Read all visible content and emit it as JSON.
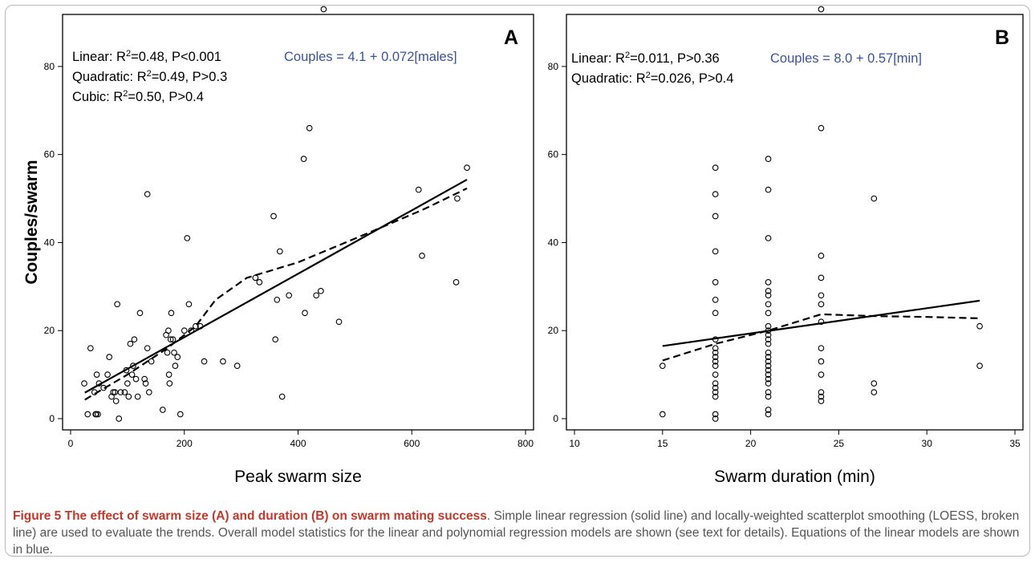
{
  "y_axis_label": "Couples/swarm",
  "caption": {
    "title": "Figure 5 The effect of swarm size (A) and duration (B) on swarm mating success",
    "text": ". Simple linear regression (solid line) and locally-weighted scatterplot smoothing (LOESS, broken line) are used to evaluate the trends. Overall model statistics for the linear and polynomial regression models are shown (see text for details). Equations of the linear models are shown in blue."
  },
  "colors": {
    "equation": "#3a52a0",
    "axis": "#000000",
    "caption_title": "#c0392b",
    "caption_text": "#555555"
  },
  "chart_data": [
    {
      "panel": "A",
      "type": "scatter",
      "xlabel": "Peak swarm size",
      "ylabel": "Couples/swarm",
      "xlim": [
        0,
        800
      ],
      "ylim": [
        0,
        90
      ],
      "x_ticks": [
        0,
        200,
        400,
        600,
        800
      ],
      "y_ticks": [
        0,
        20,
        40,
        60,
        80
      ],
      "stats": [
        {
          "model": "Linear:",
          "r2": "0.48",
          "p": "P<0.001"
        },
        {
          "model": "Quadratic:",
          "r2": "0.49",
          "p": "P>0.3"
        },
        {
          "model": "Cubic:",
          "r2": "0.50",
          "p": "P>0.4"
        }
      ],
      "equation": "Couples = 4.1 + 0.072[males]",
      "points": [
        [
          24,
          8
        ],
        [
          30,
          1
        ],
        [
          35,
          16
        ],
        [
          42,
          6
        ],
        [
          44,
          1
        ],
        [
          45,
          1
        ],
        [
          46,
          10
        ],
        [
          48,
          1
        ],
        [
          50,
          8
        ],
        [
          58,
          7
        ],
        [
          65,
          10
        ],
        [
          68,
          14
        ],
        [
          72,
          5
        ],
        [
          75,
          6
        ],
        [
          78,
          6
        ],
        [
          80,
          4
        ],
        [
          82,
          26
        ],
        [
          85,
          0
        ],
        [
          88,
          6
        ],
        [
          95,
          6
        ],
        [
          98,
          11
        ],
        [
          100,
          8
        ],
        [
          102,
          5
        ],
        [
          105,
          17
        ],
        [
          108,
          10
        ],
        [
          110,
          12
        ],
        [
          112,
          18
        ],
        [
          115,
          9
        ],
        [
          118,
          5
        ],
        [
          122,
          24
        ],
        [
          130,
          9
        ],
        [
          132,
          8
        ],
        [
          135,
          16
        ],
        [
          135,
          51
        ],
        [
          138,
          6
        ],
        [
          142,
          13
        ],
        [
          162,
          2
        ],
        [
          168,
          19
        ],
        [
          170,
          15
        ],
        [
          172,
          20
        ],
        [
          173,
          10
        ],
        [
          174,
          8
        ],
        [
          176,
          18
        ],
        [
          177,
          24
        ],
        [
          180,
          18
        ],
        [
          182,
          15
        ],
        [
          184,
          12
        ],
        [
          188,
          14
        ],
        [
          193,
          1
        ],
        [
          200,
          20
        ],
        [
          205,
          41
        ],
        [
          208,
          26
        ],
        [
          212,
          20
        ],
        [
          220,
          21
        ],
        [
          228,
          21
        ],
        [
          235,
          13
        ],
        [
          268,
          13
        ],
        [
          293,
          12
        ],
        [
          325,
          32
        ],
        [
          332,
          31
        ],
        [
          357,
          46
        ],
        [
          360,
          18
        ],
        [
          363,
          27
        ],
        [
          368,
          38
        ],
        [
          372,
          5
        ],
        [
          384,
          28
        ],
        [
          410,
          59
        ],
        [
          412,
          24
        ],
        [
          420,
          66
        ],
        [
          432,
          28
        ],
        [
          440,
          29
        ],
        [
          445,
          93
        ],
        [
          472,
          22
        ],
        [
          612,
          52
        ],
        [
          618,
          37
        ],
        [
          678,
          31
        ],
        [
          680,
          50
        ],
        [
          697,
          57
        ]
      ],
      "linear": [
        [
          25,
          5.9
        ],
        [
          697,
          54.3
        ]
      ],
      "loess": [
        [
          25,
          4.3
        ],
        [
          100,
          10
        ],
        [
          170,
          16
        ],
        [
          220,
          21
        ],
        [
          255,
          27
        ],
        [
          310,
          32
        ],
        [
          400,
          35.5
        ],
        [
          520,
          42
        ],
        [
          620,
          47.5
        ],
        [
          697,
          52.3
        ]
      ]
    },
    {
      "panel": "B",
      "type": "scatter",
      "xlabel": "Swarm duration (min)",
      "ylabel": "",
      "xlim": [
        10,
        35
      ],
      "ylim": [
        0,
        90
      ],
      "x_ticks": [
        10,
        15,
        20,
        25,
        30,
        35
      ],
      "y_ticks": [
        0,
        20,
        40,
        60,
        80
      ],
      "stats": [
        {
          "model": "Linear:",
          "r2": "0.011",
          "p": "P>0.36"
        },
        {
          "model": "Quadratic:",
          "r2": "0.026",
          "p": "P>0.4"
        }
      ],
      "equation": "Couples = 8.0 + 0.57[min]",
      "points": [
        [
          15,
          12
        ],
        [
          15,
          1
        ],
        [
          18,
          57
        ],
        [
          18,
          51
        ],
        [
          18,
          46
        ],
        [
          18,
          38
        ],
        [
          18,
          31
        ],
        [
          18,
          27
        ],
        [
          18,
          24
        ],
        [
          18,
          18
        ],
        [
          18,
          16
        ],
        [
          18,
          15
        ],
        [
          18,
          14
        ],
        [
          18,
          13
        ],
        [
          18,
          12
        ],
        [
          18,
          10
        ],
        [
          18,
          8
        ],
        [
          18,
          7
        ],
        [
          18,
          6
        ],
        [
          18,
          5
        ],
        [
          18,
          1
        ],
        [
          18,
          0
        ],
        [
          21,
          59
        ],
        [
          21,
          52
        ],
        [
          21,
          41
        ],
        [
          21,
          31
        ],
        [
          21,
          29
        ],
        [
          21,
          28
        ],
        [
          21,
          26
        ],
        [
          21,
          24
        ],
        [
          21,
          21
        ],
        [
          21,
          20
        ],
        [
          21,
          19
        ],
        [
          21,
          18
        ],
        [
          21,
          17
        ],
        [
          21,
          15
        ],
        [
          21,
          14
        ],
        [
          21,
          13
        ],
        [
          21,
          12
        ],
        [
          21,
          11
        ],
        [
          21,
          10
        ],
        [
          21,
          9
        ],
        [
          21,
          8
        ],
        [
          21,
          6
        ],
        [
          21,
          5
        ],
        [
          21,
          2
        ],
        [
          21,
          1
        ],
        [
          24,
          93
        ],
        [
          24,
          66
        ],
        [
          24,
          37
        ],
        [
          24,
          32
        ],
        [
          24,
          28
        ],
        [
          24,
          26
        ],
        [
          24,
          22
        ],
        [
          24,
          16
        ],
        [
          24,
          13
        ],
        [
          24,
          10
        ],
        [
          24,
          6
        ],
        [
          24,
          5
        ],
        [
          24,
          4
        ],
        [
          27,
          50
        ],
        [
          27,
          8
        ],
        [
          27,
          6
        ],
        [
          33,
          21
        ],
        [
          33,
          12
        ]
      ],
      "linear": [
        [
          15,
          16.5
        ],
        [
          33,
          26.8
        ]
      ],
      "loess": [
        [
          15,
          13.2
        ],
        [
          18,
          17
        ],
        [
          21,
          20
        ],
        [
          24,
          23.7
        ],
        [
          27,
          23.3
        ],
        [
          30,
          23.1
        ],
        [
          33,
          22.8
        ]
      ]
    }
  ]
}
